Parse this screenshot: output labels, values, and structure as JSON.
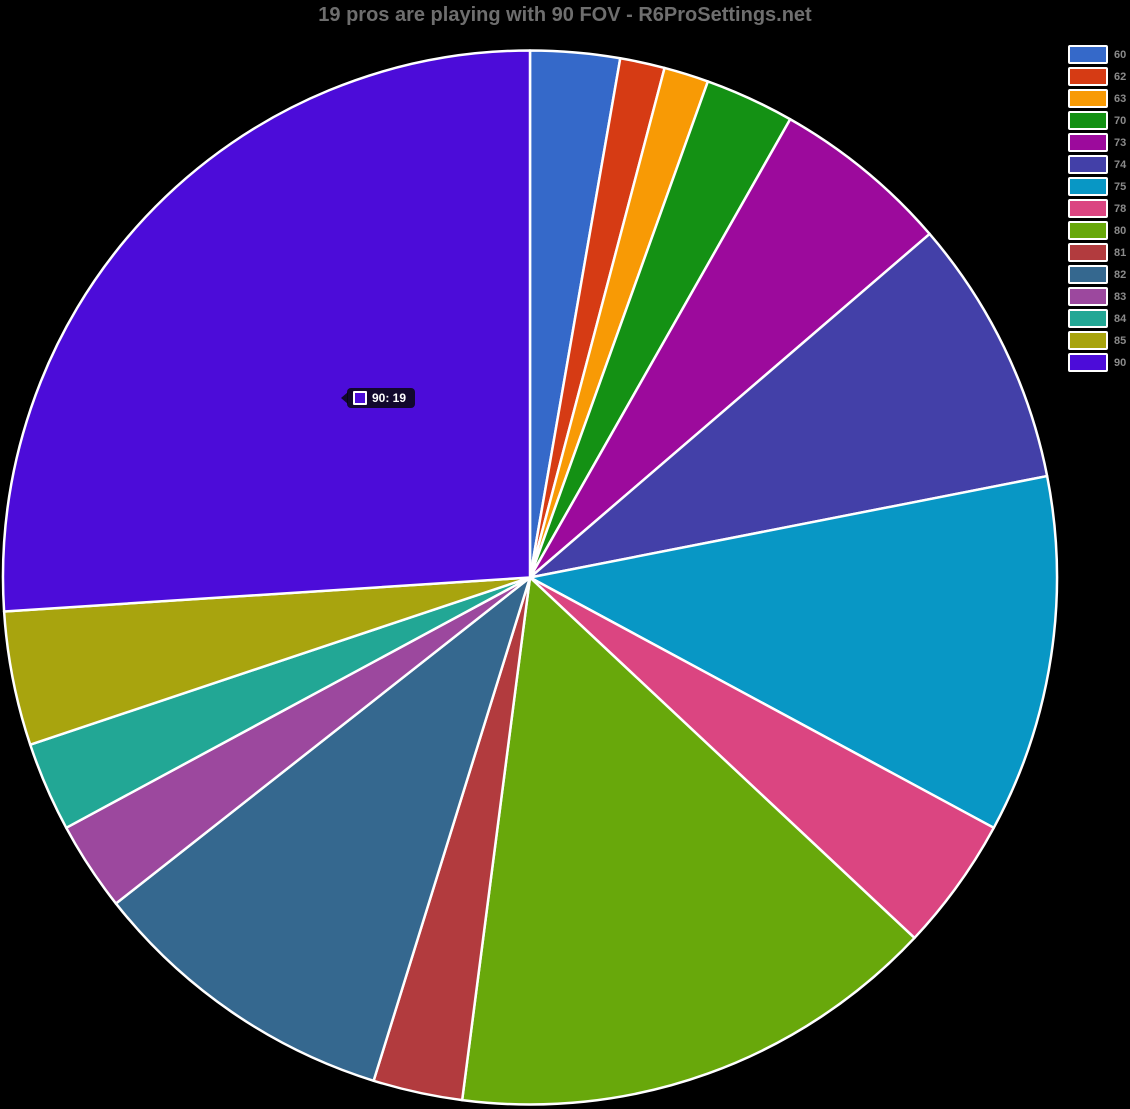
{
  "page": {
    "background": "#000000",
    "title": "19 pros are playing with 90 FOV - R6ProSettings.net",
    "title_color": "#6e6e6e"
  },
  "tooltip": {
    "text": "90: 19",
    "swatch_color": "#4c0cd9"
  },
  "chart_data": {
    "type": "pie",
    "title": "19 pros are playing with 90 FOV - R6ProSettings.net",
    "legend_position": "right",
    "start_angle_deg": 0,
    "direction": "clockwise",
    "total": 73,
    "slice_border_color": "#ffffff",
    "highlighted_slice": {
      "label": "90",
      "value": 19
    },
    "slices": [
      {
        "label": "60",
        "value": 2,
        "color": "#3569c9"
      },
      {
        "label": "62",
        "value": 1,
        "color": "#d63b14"
      },
      {
        "label": "63",
        "value": 1,
        "color": "#f89a05"
      },
      {
        "label": "70",
        "value": 2,
        "color": "#149114"
      },
      {
        "label": "73",
        "value": 4,
        "color": "#9c0a9c"
      },
      {
        "label": "74",
        "value": 6,
        "color": "#4340a8"
      },
      {
        "label": "75",
        "value": 8,
        "color": "#0897c5"
      },
      {
        "label": "78",
        "value": 3,
        "color": "#db4581"
      },
      {
        "label": "80",
        "value": 11,
        "color": "#68a80b"
      },
      {
        "label": "81",
        "value": 2,
        "color": "#b23b3e"
      },
      {
        "label": "82",
        "value": 7,
        "color": "#35688f"
      },
      {
        "label": "83",
        "value": 2,
        "color": "#9c489e"
      },
      {
        "label": "84",
        "value": 2,
        "color": "#22a795"
      },
      {
        "label": "85",
        "value": 3,
        "color": "#a8a40e"
      },
      {
        "label": "90",
        "value": 19,
        "color": "#4c0cd9"
      }
    ]
  }
}
